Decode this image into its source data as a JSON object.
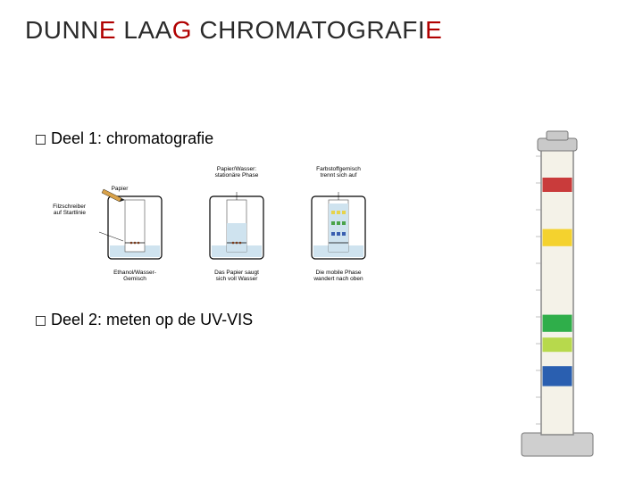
{
  "title_parts": {
    "dark1": "DUNN",
    "red1": "E",
    "dark2": " LAA",
    "red2": "G",
    "dark3": " CHROMATOGRAFI",
    "red3": "E"
  },
  "bullets": {
    "b1": "Deel 1: chromatografie",
    "b2": "Deel 2: meten op de  UV-VIS"
  },
  "beakers": {
    "panel1": {
      "side_label": "Filzschreiber\nauf Startlinie",
      "bottom_label": "Ethanol/Wasser-\nGemisch",
      "paper_label": "Papier"
    },
    "panel2": {
      "top_label": "Papier/Wasser:\nstationäre Phase",
      "bottom_label": "Das Papier saugt\nsich voll Wasser"
    },
    "panel3": {
      "top_label": "Farbstoffgemisch\ntrennt sich auf",
      "bottom_label": "Die mobile Phase\nwandert nach oben"
    }
  },
  "column": {
    "bands": [
      {
        "color": "#c93b3b",
        "top_pct": 10,
        "height_pct": 5
      },
      {
        "color": "#f4d22e",
        "top_pct": 28,
        "height_pct": 6
      },
      {
        "color": "#2fae4a",
        "top_pct": 58,
        "height_pct": 6
      },
      {
        "color": "#b7d94c",
        "top_pct": 66,
        "height_pct": 5
      },
      {
        "color": "#2a5fb0",
        "top_pct": 76,
        "height_pct": 7
      }
    ],
    "fill_color": "#f4f2e8",
    "body_border": "#888888",
    "cap_color": "#c9c9c9",
    "base_color": "#cfcfcf"
  },
  "diagram_colors": {
    "liquid": "#cfe3ef",
    "paper": "#ffffff",
    "pencil": "#d9a24a",
    "tip": "#222222",
    "brown_spot": "#7a3a1a",
    "yellow_band": "#e7d34a",
    "green_band": "#4aa34a",
    "blue_band": "#3a5fb0"
  }
}
